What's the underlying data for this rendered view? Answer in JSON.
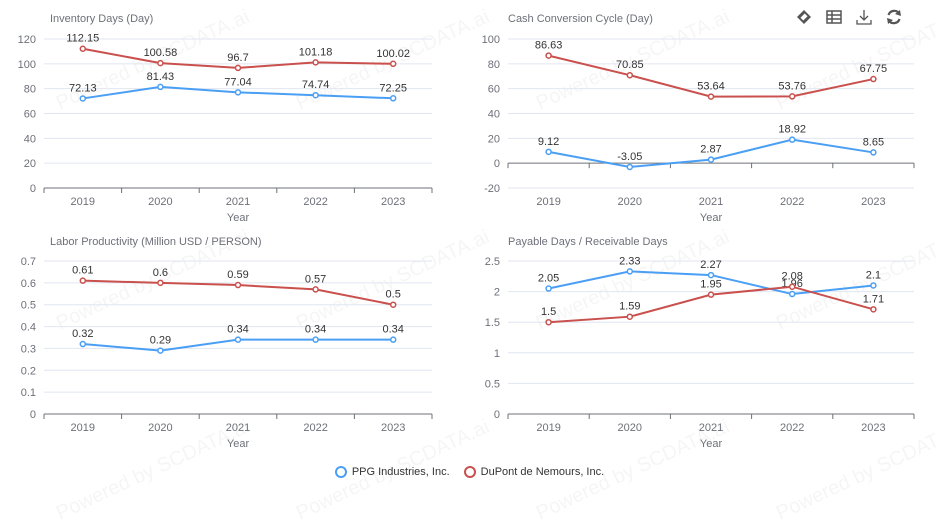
{
  "toolbar": {
    "icons": [
      "tag-icon",
      "data-view-icon",
      "download-icon",
      "refresh-icon"
    ]
  },
  "legend": {
    "items": [
      {
        "label": "PPG Industries, Inc.",
        "color": "#4a9ff5"
      },
      {
        "label": "DuPont de Nemours, Inc.",
        "color": "#c9504d"
      }
    ]
  },
  "watermark": "Powered by SCDATA.ai",
  "chart_data": [
    {
      "type": "line",
      "title": "Inventory Days (Day)",
      "xlabel": "Year",
      "ylabel": "",
      "categories": [
        "2019",
        "2020",
        "2021",
        "2022",
        "2023"
      ],
      "ylim": [
        0,
        120
      ],
      "yticks": [
        0,
        20,
        40,
        60,
        80,
        100,
        120
      ],
      "grid": true,
      "series": [
        {
          "name": "PPG Industries, Inc.",
          "color": "#4a9ff5",
          "values": [
            72.13,
            81.43,
            77.04,
            74.74,
            72.25
          ]
        },
        {
          "name": "DuPont de Nemours, Inc.",
          "color": "#c9504d",
          "values": [
            112.15,
            100.58,
            96.7,
            101.18,
            100.02
          ]
        }
      ]
    },
    {
      "type": "line",
      "title": "Cash Conversion Cycle (Day)",
      "xlabel": "Year",
      "ylabel": "",
      "categories": [
        "2019",
        "2020",
        "2021",
        "2022",
        "2023"
      ],
      "ylim": [
        -20,
        100
      ],
      "yticks": [
        -20,
        0,
        20,
        40,
        60,
        80,
        100
      ],
      "grid": true,
      "series": [
        {
          "name": "PPG Industries, Inc.",
          "color": "#4a9ff5",
          "values": [
            9.12,
            -3.05,
            2.87,
            18.92,
            8.65
          ]
        },
        {
          "name": "DuPont de Nemours, Inc.",
          "color": "#c9504d",
          "values": [
            86.63,
            70.85,
            53.64,
            53.76,
            67.75
          ]
        }
      ]
    },
    {
      "type": "line",
      "title": "Labor Productivity (Million USD / PERSON)",
      "xlabel": "Year",
      "ylabel": "",
      "categories": [
        "2019",
        "2020",
        "2021",
        "2022",
        "2023"
      ],
      "ylim": [
        0,
        0.7
      ],
      "yticks": [
        0,
        0.1,
        0.2,
        0.3,
        0.4,
        0.5,
        0.6,
        0.7
      ],
      "grid": true,
      "series": [
        {
          "name": "PPG Industries, Inc.",
          "color": "#4a9ff5",
          "values": [
            0.32,
            0.29,
            0.34,
            0.34,
            0.34
          ]
        },
        {
          "name": "DuPont de Nemours, Inc.",
          "color": "#c9504d",
          "values": [
            0.61,
            0.6,
            0.59,
            0.57,
            0.5
          ]
        }
      ]
    },
    {
      "type": "line",
      "title": "Payable Days / Receivable Days",
      "xlabel": "Year",
      "ylabel": "",
      "categories": [
        "2019",
        "2020",
        "2021",
        "2022",
        "2023"
      ],
      "ylim": [
        0,
        2.5
      ],
      "yticks": [
        0,
        0.5,
        1,
        1.5,
        2,
        2.5
      ],
      "grid": true,
      "series": [
        {
          "name": "PPG Industries, Inc.",
          "color": "#4a9ff5",
          "values": [
            2.05,
            2.33,
            2.27,
            1.96,
            2.1
          ]
        },
        {
          "name": "DuPont de Nemours, Inc.",
          "color": "#c9504d",
          "values": [
            1.5,
            1.59,
            1.95,
            2.08,
            1.71
          ]
        }
      ]
    }
  ]
}
